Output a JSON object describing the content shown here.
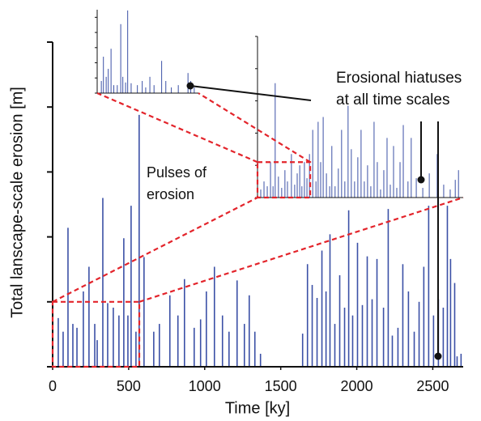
{
  "chart_data": [
    {
      "type": "spike",
      "xlabel": "Time [ky]",
      "ylabel": "Total lanscape-scale erosion [m]",
      "annotations": [
        [
          "Pulses of",
          "erosion"
        ],
        [
          "Erosional hiatuses",
          "at all time scales"
        ]
      ],
      "color": "#3b50a6",
      "xlim": [
        0,
        2700
      ],
      "ylim": [
        0,
        5
      ],
      "xticks": [
        0,
        500,
        1000,
        1500,
        2000,
        2500
      ],
      "yticks": [
        0,
        1,
        2,
        3,
        4,
        5
      ],
      "x": [
        37,
        69,
        101,
        133,
        160,
        202,
        239,
        277,
        293,
        330,
        362,
        399,
        436,
        468,
        495,
        516,
        548,
        569,
        601,
        665,
        702,
        771,
        824,
        867,
        931,
        973,
        1011,
        1064,
        1117,
        1160,
        1213,
        1261,
        1293,
        1330,
        1367,
        1644,
        1676,
        1707,
        1739,
        1771,
        1798,
        1824,
        1856,
        1888,
        1920,
        1947,
        1973,
        2005,
        2037,
        2069,
        2101,
        2133,
        2176,
        2207,
        2234,
        2271,
        2303,
        2340,
        2378,
        2410,
        2441,
        2473,
        2505,
        2537,
        2569,
        2596,
        2617,
        2644,
        2660,
        2686
      ],
      "values": [
        0.75,
        0.54,
        2.14,
        0.66,
        0.6,
        1.16,
        1.54,
        0.66,
        0.41,
        2.6,
        0.98,
        0.91,
        0.79,
        1.98,
        0.79,
        2.48,
        0.54,
        3.88,
        1.69,
        0.54,
        0.66,
        1.1,
        0.79,
        1.35,
        0.6,
        0.73,
        1.16,
        1.54,
        0.79,
        0.54,
        1.33,
        0.66,
        1.1,
        0.54,
        0.2,
        0.51,
        1.58,
        1.26,
        1.06,
        1.79,
        1.16,
        2.04,
        0.66,
        1.41,
        0.91,
        2.41,
        0.79,
        1.91,
        0.95,
        1.7,
        1.04,
        1.66,
        0.91,
        2.43,
        0.48,
        0.6,
        1.58,
        1.16,
        0.54,
        1.0,
        1.54,
        2.48,
        0.79,
        1.04,
        0.91,
        2.48,
        1.66,
        1.29,
        0.16,
        0.2
      ]
    },
    {
      "type": "spike",
      "color": "#3b50a6",
      "xlim": [
        0,
        570
      ],
      "ylim": [
        0,
        1
      ],
      "yticks": [
        0,
        0.2,
        0.4,
        0.6,
        0.8,
        1
      ],
      "x": [
        9,
        18,
        27,
        36,
        43,
        49,
        58,
        67,
        76,
        83,
        94,
        103,
        110,
        117,
        123,
        130,
        137,
        144,
        153,
        162,
        168,
        175,
        182,
        191,
        200,
        206,
        215,
        224,
        233,
        242,
        251,
        260,
        269,
        278,
        287,
        296,
        305,
        314,
        323,
        332,
        341,
        350,
        359,
        368,
        377,
        386,
        395,
        404,
        417,
        426,
        440,
        458,
        476,
        498,
        516,
        534,
        548,
        557
      ],
      "values": [
        0.05,
        0.1,
        0.07,
        0.22,
        0.07,
        0.71,
        0.13,
        0.06,
        0.17,
        0.1,
        0.27,
        0.08,
        0.15,
        0.2,
        0.07,
        0.22,
        0.12,
        0.27,
        0.42,
        0.1,
        0.47,
        0.22,
        0.5,
        0.15,
        0.07,
        0.32,
        0.07,
        0.18,
        0.42,
        0.1,
        0.57,
        0.3,
        0.1,
        0.25,
        0.42,
        0.1,
        0.2,
        0.07,
        0.47,
        0.22,
        0.05,
        0.17,
        0.37,
        0.08,
        0.32,
        0.06,
        0.22,
        0.45,
        0.1,
        0.37,
        0.12,
        0.06,
        0.15,
        0.27,
        0.08,
        0.05,
        0.11,
        0.17
      ]
    },
    {
      "type": "spike",
      "color": "#3b50a6",
      "xlim": [
        0,
        146
      ],
      "ylim": [
        0,
        0.22
      ],
      "yticks": [
        0,
        0.04,
        0.08,
        0.12,
        0.16,
        0.2
      ],
      "x": [
        6,
        9,
        13,
        16,
        20,
        24,
        29,
        34,
        37,
        41,
        44,
        49,
        58,
        65,
        70,
        76,
        82,
        93,
        99,
        107,
        117,
        131,
        135,
        140
      ],
      "values": [
        0.032,
        0.096,
        0.043,
        0.064,
        0.117,
        0.021,
        0.021,
        0.182,
        0.043,
        0.028,
        0.218,
        0.026,
        0.021,
        0.032,
        0.015,
        0.043,
        0.021,
        0.085,
        0.032,
        0.015,
        0.021,
        0.053,
        0.032,
        0.015
      ]
    }
  ]
}
